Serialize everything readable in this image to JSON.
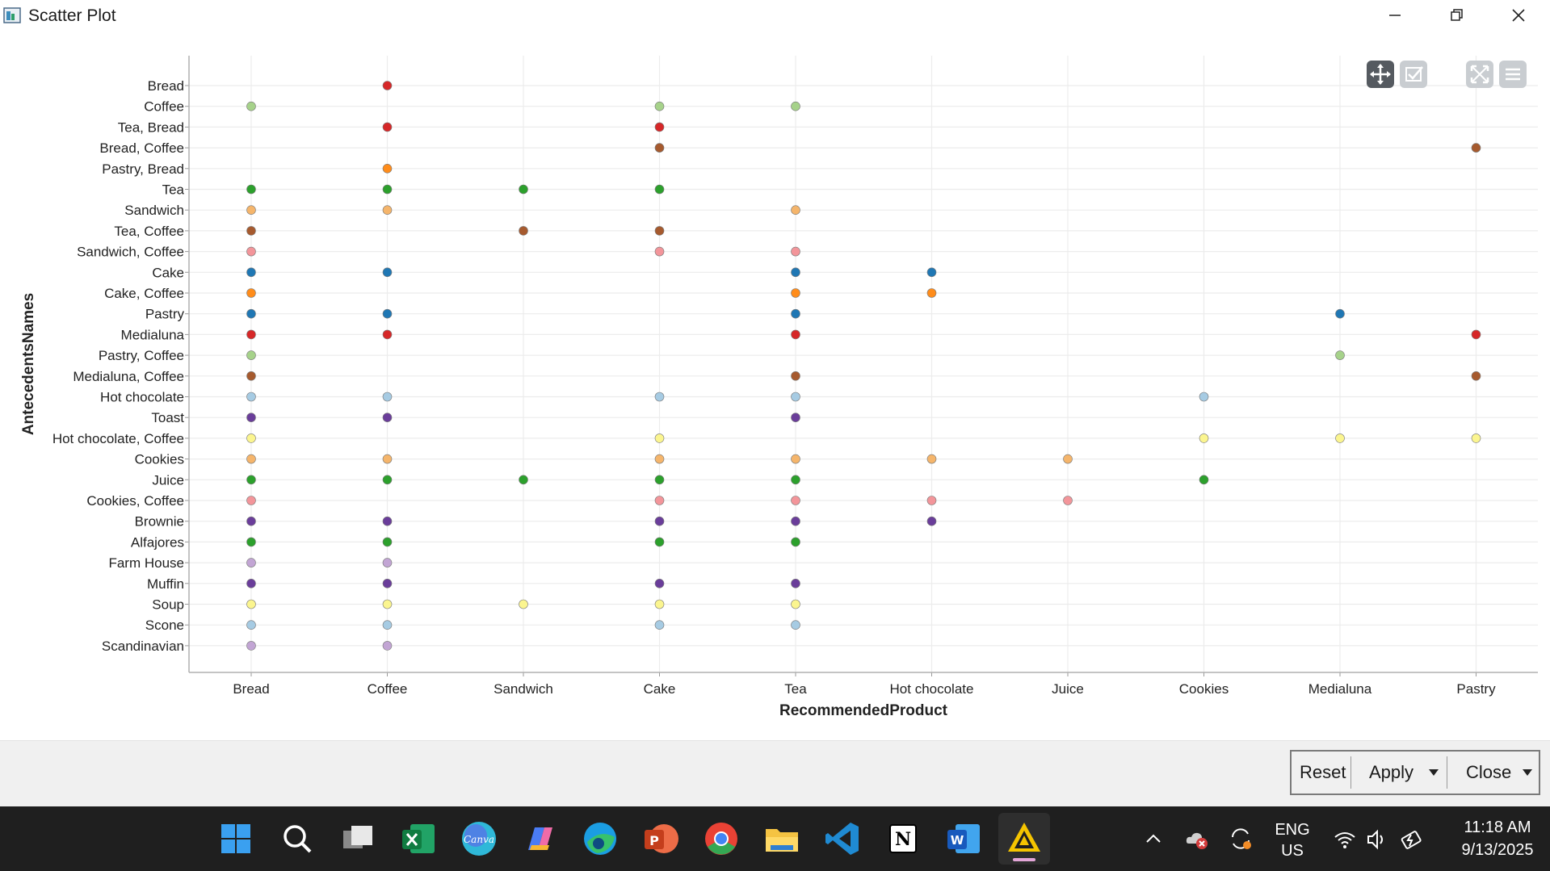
{
  "window": {
    "title": "Scatter Plot",
    "icons": [
      "app-icon",
      "minimize-icon",
      "maximize-icon",
      "close-icon"
    ]
  },
  "toolbar": {
    "icons": [
      "pan-icon",
      "select-icon",
      "zoom-fit-icon",
      "menu-icon"
    ]
  },
  "chart_data": {
    "type": "scatter",
    "title": "",
    "xlabel": "RecommendedProduct",
    "ylabel": "AntecedentsNames",
    "grid": true,
    "legend": "none",
    "x_categories": [
      "Bread",
      "Coffee",
      "Sandwich",
      "Cake",
      "Tea",
      "Hot chocolate",
      "Juice",
      "Cookies",
      "Medialuna",
      "Pastry"
    ],
    "y_categories": [
      "Bread",
      "Coffee",
      "Tea, Bread",
      "Bread, Coffee",
      "Pastry, Bread",
      "Tea",
      "Sandwich",
      "Tea, Coffee",
      "Sandwich, Coffee",
      "Cake",
      "Cake, Coffee",
      "Pastry",
      "Medialuna",
      "Pastry, Coffee",
      "Medialuna, Coffee",
      "Hot chocolate",
      "Toast",
      "Hot chocolate, Coffee",
      "Cookies",
      "Juice",
      "Cookies, Coffee",
      "Brownie",
      "Alfajores",
      "Farm House",
      "Muffin",
      "Soup",
      "Scone",
      "Scandinavian"
    ],
    "row_colors": [
      "#d62728",
      "#a6d28a",
      "#d62728",
      "#a65a2e",
      "#ff8c1a",
      "#2ca02c",
      "#f5b56b",
      "#a65a2e",
      "#f3959a",
      "#1f77b4",
      "#ff8c1a",
      "#1f77b4",
      "#d62728",
      "#a6d28a",
      "#a65a2e",
      "#a6cbe3",
      "#6a3d9a",
      "#fbf58f",
      "#f5b56b",
      "#2ca02c",
      "#f3959a",
      "#6a3d9a",
      "#2ca02c",
      "#c2a5d4",
      "#6a3d9a",
      "#fbf58f",
      "#a6cbe3",
      "#c2a5d4"
    ],
    "points": [
      {
        "x": "Coffee",
        "y": "Bread"
      },
      {
        "x": "Bread",
        "y": "Coffee"
      },
      {
        "x": "Cake",
        "y": "Coffee"
      },
      {
        "x": "Tea",
        "y": "Coffee"
      },
      {
        "x": "Coffee",
        "y": "Tea, Bread"
      },
      {
        "x": "Cake",
        "y": "Tea, Bread"
      },
      {
        "x": "Cake",
        "y": "Bread, Coffee"
      },
      {
        "x": "Pastry",
        "y": "Bread, Coffee"
      },
      {
        "x": "Coffee",
        "y": "Pastry, Bread"
      },
      {
        "x": "Bread",
        "y": "Tea"
      },
      {
        "x": "Coffee",
        "y": "Tea"
      },
      {
        "x": "Sandwich",
        "y": "Tea"
      },
      {
        "x": "Cake",
        "y": "Tea"
      },
      {
        "x": "Bread",
        "y": "Sandwich"
      },
      {
        "x": "Coffee",
        "y": "Sandwich"
      },
      {
        "x": "Tea",
        "y": "Sandwich"
      },
      {
        "x": "Bread",
        "y": "Tea, Coffee"
      },
      {
        "x": "Sandwich",
        "y": "Tea, Coffee"
      },
      {
        "x": "Cake",
        "y": "Tea, Coffee"
      },
      {
        "x": "Bread",
        "y": "Sandwich, Coffee"
      },
      {
        "x": "Cake",
        "y": "Sandwich, Coffee"
      },
      {
        "x": "Tea",
        "y": "Sandwich, Coffee"
      },
      {
        "x": "Bread",
        "y": "Cake"
      },
      {
        "x": "Coffee",
        "y": "Cake"
      },
      {
        "x": "Tea",
        "y": "Cake"
      },
      {
        "x": "Hot chocolate",
        "y": "Cake"
      },
      {
        "x": "Bread",
        "y": "Cake, Coffee"
      },
      {
        "x": "Tea",
        "y": "Cake, Coffee"
      },
      {
        "x": "Hot chocolate",
        "y": "Cake, Coffee"
      },
      {
        "x": "Bread",
        "y": "Pastry"
      },
      {
        "x": "Coffee",
        "y": "Pastry"
      },
      {
        "x": "Tea",
        "y": "Pastry"
      },
      {
        "x": "Medialuna",
        "y": "Pastry"
      },
      {
        "x": "Bread",
        "y": "Medialuna"
      },
      {
        "x": "Coffee",
        "y": "Medialuna"
      },
      {
        "x": "Tea",
        "y": "Medialuna"
      },
      {
        "x": "Pastry",
        "y": "Medialuna"
      },
      {
        "x": "Bread",
        "y": "Pastry, Coffee"
      },
      {
        "x": "Medialuna",
        "y": "Pastry, Coffee"
      },
      {
        "x": "Bread",
        "y": "Medialuna, Coffee"
      },
      {
        "x": "Tea",
        "y": "Medialuna, Coffee"
      },
      {
        "x": "Pastry",
        "y": "Medialuna, Coffee"
      },
      {
        "x": "Bread",
        "y": "Hot chocolate"
      },
      {
        "x": "Coffee",
        "y": "Hot chocolate"
      },
      {
        "x": "Cake",
        "y": "Hot chocolate"
      },
      {
        "x": "Tea",
        "y": "Hot chocolate"
      },
      {
        "x": "Cookies",
        "y": "Hot chocolate"
      },
      {
        "x": "Bread",
        "y": "Toast"
      },
      {
        "x": "Coffee",
        "y": "Toast"
      },
      {
        "x": "Tea",
        "y": "Toast"
      },
      {
        "x": "Bread",
        "y": "Hot chocolate, Coffee"
      },
      {
        "x": "Cake",
        "y": "Hot chocolate, Coffee"
      },
      {
        "x": "Cookies",
        "y": "Hot chocolate, Coffee"
      },
      {
        "x": "Medialuna",
        "y": "Hot chocolate, Coffee"
      },
      {
        "x": "Pastry",
        "y": "Hot chocolate, Coffee"
      },
      {
        "x": "Bread",
        "y": "Cookies"
      },
      {
        "x": "Coffee",
        "y": "Cookies"
      },
      {
        "x": "Cake",
        "y": "Cookies"
      },
      {
        "x": "Tea",
        "y": "Cookies"
      },
      {
        "x": "Hot chocolate",
        "y": "Cookies"
      },
      {
        "x": "Juice",
        "y": "Cookies"
      },
      {
        "x": "Bread",
        "y": "Juice"
      },
      {
        "x": "Coffee",
        "y": "Juice"
      },
      {
        "x": "Sandwich",
        "y": "Juice"
      },
      {
        "x": "Cake",
        "y": "Juice"
      },
      {
        "x": "Tea",
        "y": "Juice"
      },
      {
        "x": "Cookies",
        "y": "Juice"
      },
      {
        "x": "Bread",
        "y": "Cookies, Coffee"
      },
      {
        "x": "Cake",
        "y": "Cookies, Coffee"
      },
      {
        "x": "Tea",
        "y": "Cookies, Coffee"
      },
      {
        "x": "Hot chocolate",
        "y": "Cookies, Coffee"
      },
      {
        "x": "Juice",
        "y": "Cookies, Coffee"
      },
      {
        "x": "Bread",
        "y": "Brownie"
      },
      {
        "x": "Coffee",
        "y": "Brownie"
      },
      {
        "x": "Cake",
        "y": "Brownie"
      },
      {
        "x": "Tea",
        "y": "Brownie"
      },
      {
        "x": "Hot chocolate",
        "y": "Brownie"
      },
      {
        "x": "Bread",
        "y": "Alfajores"
      },
      {
        "x": "Coffee",
        "y": "Alfajores"
      },
      {
        "x": "Cake",
        "y": "Alfajores"
      },
      {
        "x": "Tea",
        "y": "Alfajores"
      },
      {
        "x": "Bread",
        "y": "Farm House"
      },
      {
        "x": "Coffee",
        "y": "Farm House"
      },
      {
        "x": "Bread",
        "y": "Muffin"
      },
      {
        "x": "Coffee",
        "y": "Muffin"
      },
      {
        "x": "Cake",
        "y": "Muffin"
      },
      {
        "x": "Tea",
        "y": "Muffin"
      },
      {
        "x": "Bread",
        "y": "Soup"
      },
      {
        "x": "Coffee",
        "y": "Soup"
      },
      {
        "x": "Sandwich",
        "y": "Soup"
      },
      {
        "x": "Cake",
        "y": "Soup"
      },
      {
        "x": "Tea",
        "y": "Soup"
      },
      {
        "x": "Bread",
        "y": "Scone"
      },
      {
        "x": "Coffee",
        "y": "Scone"
      },
      {
        "x": "Cake",
        "y": "Scone"
      },
      {
        "x": "Tea",
        "y": "Scone"
      },
      {
        "x": "Bread",
        "y": "Scandinavian"
      },
      {
        "x": "Coffee",
        "y": "Scandinavian"
      }
    ]
  },
  "footer": {
    "reset_label": "Reset",
    "apply_label": "Apply",
    "close_label": "Close",
    "icons": [
      "apply-dropdown-icon",
      "close-dropdown-icon"
    ]
  },
  "taskbar": {
    "apps": [
      "windows-start-icon",
      "search-icon",
      "task-view-icon",
      "excel-icon",
      "canva-icon",
      "copilot-icon",
      "edge-icon",
      "powerpoint-icon",
      "chrome-icon",
      "file-explorer-icon",
      "vscode-icon",
      "notion-icon",
      "word-icon",
      "app-triangle-icon"
    ],
    "tray_icons": [
      "chevron-up-icon",
      "onedrive-error-icon",
      "sync-icon",
      "wifi-icon",
      "volume-icon",
      "battery-icon"
    ],
    "language_line1": "ENG",
    "language_line2": "US",
    "time": "11:18 AM",
    "date": "9/13/2025"
  }
}
